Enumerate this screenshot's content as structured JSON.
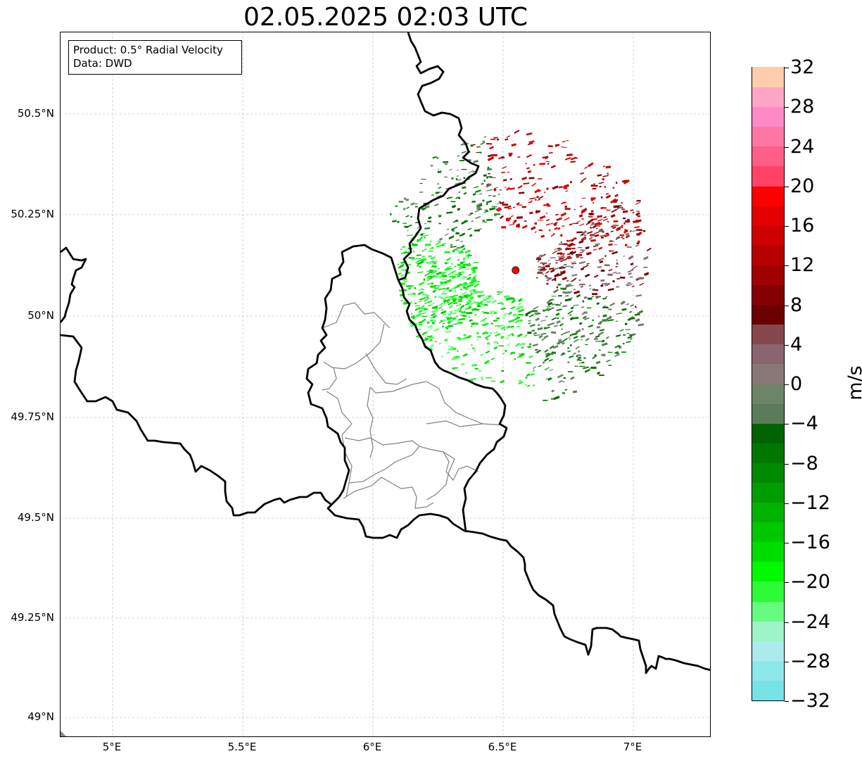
{
  "title": "02.05.2025 02:03 UTC",
  "info_box": {
    "product_line": "Product: 0.5° Radial Velocity",
    "data_line": "Data: DWD"
  },
  "map": {
    "lon_range": [
      4.8,
      7.3
    ],
    "lat_range": [
      48.95,
      50.7
    ],
    "gridlines": true,
    "lat_ticks": [
      "50.5°N",
      "50.25°N",
      "50°N",
      "49.75°N",
      "49.5°N",
      "49.25°N",
      "49°N"
    ],
    "lon_ticks": [
      "5°E",
      "5.5°E",
      "6°E",
      "6.5°E",
      "7°E"
    ],
    "radar_site": {
      "lon": 6.548,
      "lat": 50.11,
      "color": "#ff0000"
    }
  },
  "colorbar": {
    "unit": "m/s",
    "min": -32,
    "max": 32,
    "tick_labels": [
      "32",
      "28",
      "24",
      "20",
      "16",
      "12",
      "8",
      "4",
      "0",
      "−4",
      "−8",
      "−12",
      "−16",
      "−20",
      "−24",
      "−28",
      "−32"
    ],
    "colors_bottom_to_top": [
      "#76e3e6",
      "#8de8eb",
      "#abebee",
      "#9cf4c8",
      "#66fc7f",
      "#2dfb37",
      "#00fa00",
      "#00dd00",
      "#00c800",
      "#00b200",
      "#009d00",
      "#008a00",
      "#007800",
      "#006500",
      "#5a7c58",
      "#6c8568",
      "#8a7778",
      "#8a6471",
      "#86474c",
      "#6c0000",
      "#850000",
      "#a00000",
      "#b70000",
      "#cf0000",
      "#e50000",
      "#ff0000",
      "#ff4266",
      "#ff5e86",
      "#ff77a0",
      "#ff88c8",
      "#ffa6c7",
      "#ffcdac"
    ]
  }
}
